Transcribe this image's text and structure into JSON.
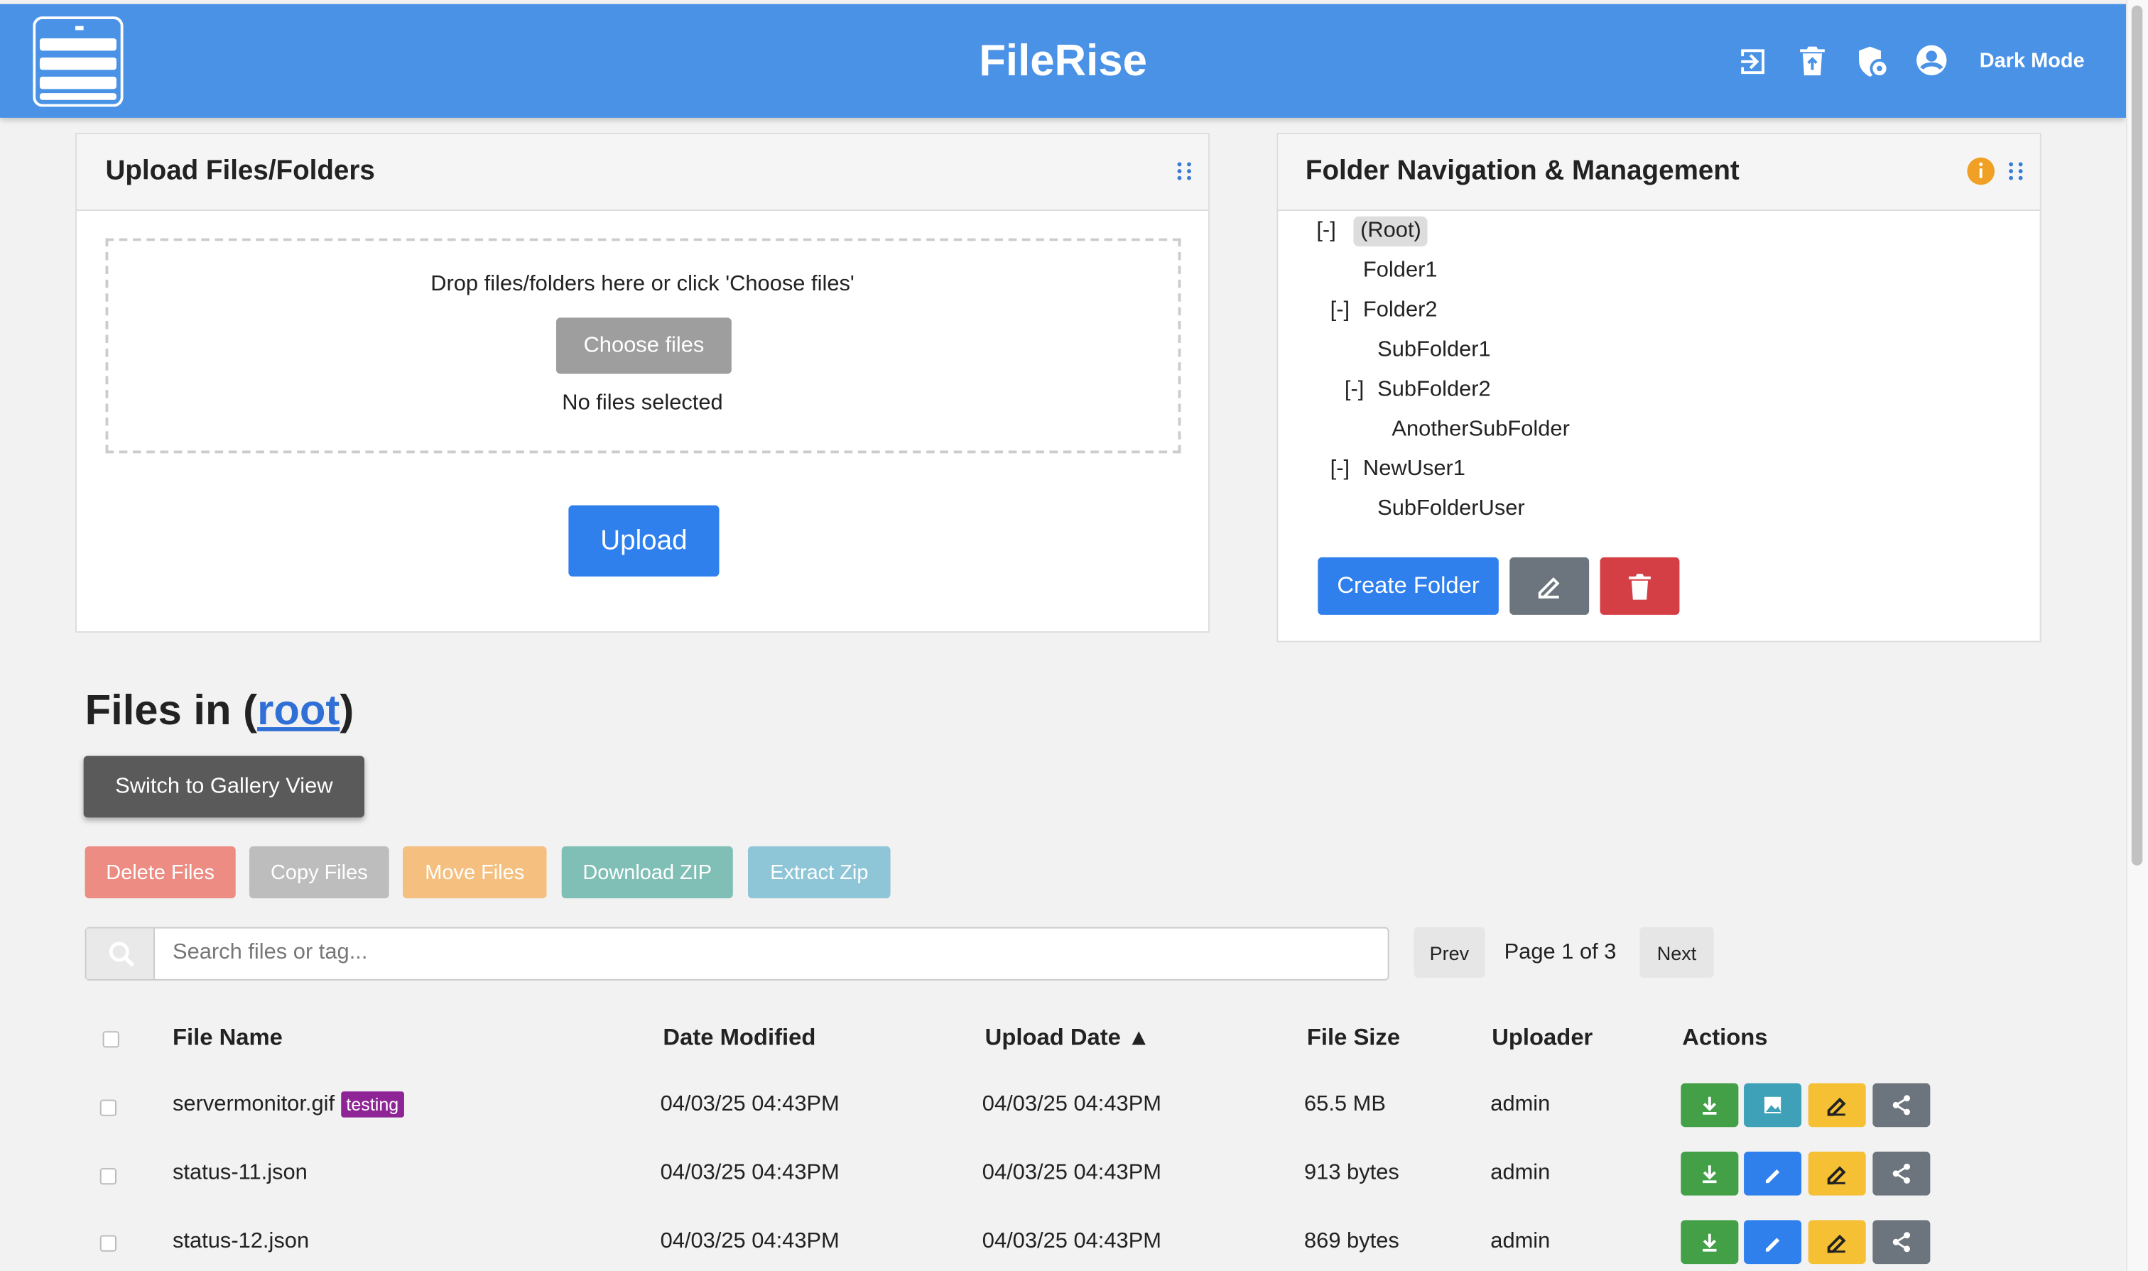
{
  "header": {
    "title": "FileRise",
    "dark_mode": "Dark Mode"
  },
  "upload": {
    "title": "Upload Files/Folders",
    "drop_text": "Drop files/folders here or click 'Choose files'",
    "choose_button": "Choose files",
    "no_files": "No files selected",
    "upload_button": "Upload"
  },
  "folders": {
    "title": "Folder Navigation & Management",
    "create_button": "Create Folder",
    "tree": {
      "toggle": "[-]",
      "name": "(Root)",
      "children": [
        {
          "name": "Folder1"
        },
        {
          "toggle": "[-]",
          "name": "Folder2",
          "children": [
            {
              "name": "SubFolder1"
            },
            {
              "toggle": "[-]",
              "name": "SubFolder2",
              "children": [
                {
                  "name": "AnotherSubFolder"
                }
              ]
            }
          ]
        },
        {
          "toggle": "[-]",
          "name": "NewUser1",
          "children": [
            {
              "name": "SubFolderUser"
            }
          ]
        }
      ]
    }
  },
  "files": {
    "heading_prefix": "Files in (",
    "root_link": "root",
    "heading_suffix": ")",
    "gallery_button": "Switch to Gallery View",
    "actions": [
      "Delete Files",
      "Copy Files",
      "Move Files",
      "Download ZIP",
      "Extract Zip"
    ],
    "search_placeholder": "Search files or tag...",
    "prev": "Prev",
    "page": "Page 1 of 3",
    "next": "Next",
    "columns": [
      "File Name",
      "Date Modified",
      "Upload Date ▲",
      "File Size",
      "Uploader",
      "Actions"
    ],
    "rows": [
      {
        "name": "servermonitor.gif",
        "tag": "testing",
        "modified": "04/03/25 04:43PM",
        "uploaded": "04/03/25 04:43PM",
        "size": "65.5 MB",
        "uploader": "admin"
      },
      {
        "name": "status-11.json",
        "modified": "04/03/25 04:43PM",
        "uploaded": "04/03/25 04:43PM",
        "size": "913 bytes",
        "uploader": "admin"
      },
      {
        "name": "status-12.json",
        "modified": "04/03/25 04:43PM",
        "uploaded": "04/03/25 04:43PM",
        "size": "869 bytes",
        "uploader": "admin"
      }
    ]
  }
}
